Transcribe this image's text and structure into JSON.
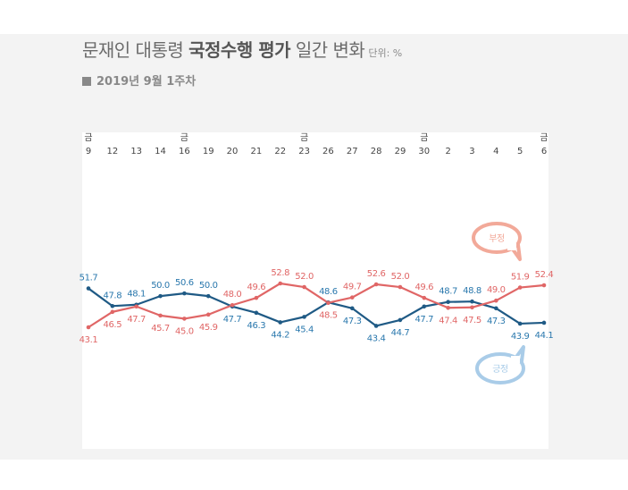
{
  "header": {
    "title_pre": "문재인 대통령 ",
    "title_bold": "국정수행 평가",
    "title_post": " 일간 변화",
    "unit": "단위: %",
    "subtitle": "2019년 9월 1주차"
  },
  "chart_data": {
    "type": "line",
    "title": "문재인 대통령 국정수행 평가 일간 변화",
    "subtitle": "2019년 9월 1주차",
    "unit": "단위: %",
    "categories": [
      "9",
      "12",
      "13",
      "14",
      "16",
      "19",
      "20",
      "21",
      "22",
      "23",
      "26",
      "27",
      "28",
      "29",
      "30",
      "2",
      "3",
      "4",
      "5",
      "6"
    ],
    "weekday_labels": {
      "0": "금",
      "4": "금",
      "9": "금",
      "14": "금",
      "19": "금"
    },
    "series": [
      {
        "name": "긍정",
        "color": "#1f5a85",
        "values": [
          51.7,
          47.8,
          48.1,
          50.0,
          50.6,
          50.0,
          47.7,
          46.3,
          44.2,
          45.4,
          48.6,
          47.3,
          43.4,
          44.7,
          47.7,
          48.7,
          48.8,
          47.3,
          43.9,
          44.1
        ]
      },
      {
        "name": "부정",
        "color": "#e06666",
        "values": [
          43.1,
          46.5,
          47.7,
          45.7,
          45.0,
          45.9,
          48.0,
          49.6,
          52.8,
          52.0,
          48.5,
          49.7,
          52.6,
          52.0,
          49.6,
          47.4,
          47.5,
          49.0,
          51.9,
          52.4
        ]
      }
    ],
    "grid": false
  },
  "colors": {
    "positive": "#1f5a85",
    "negative": "#e06666",
    "positive_label": "#2a78ad",
    "bubble_negative": "#f2a999",
    "bubble_positive": "#a9cce8"
  }
}
